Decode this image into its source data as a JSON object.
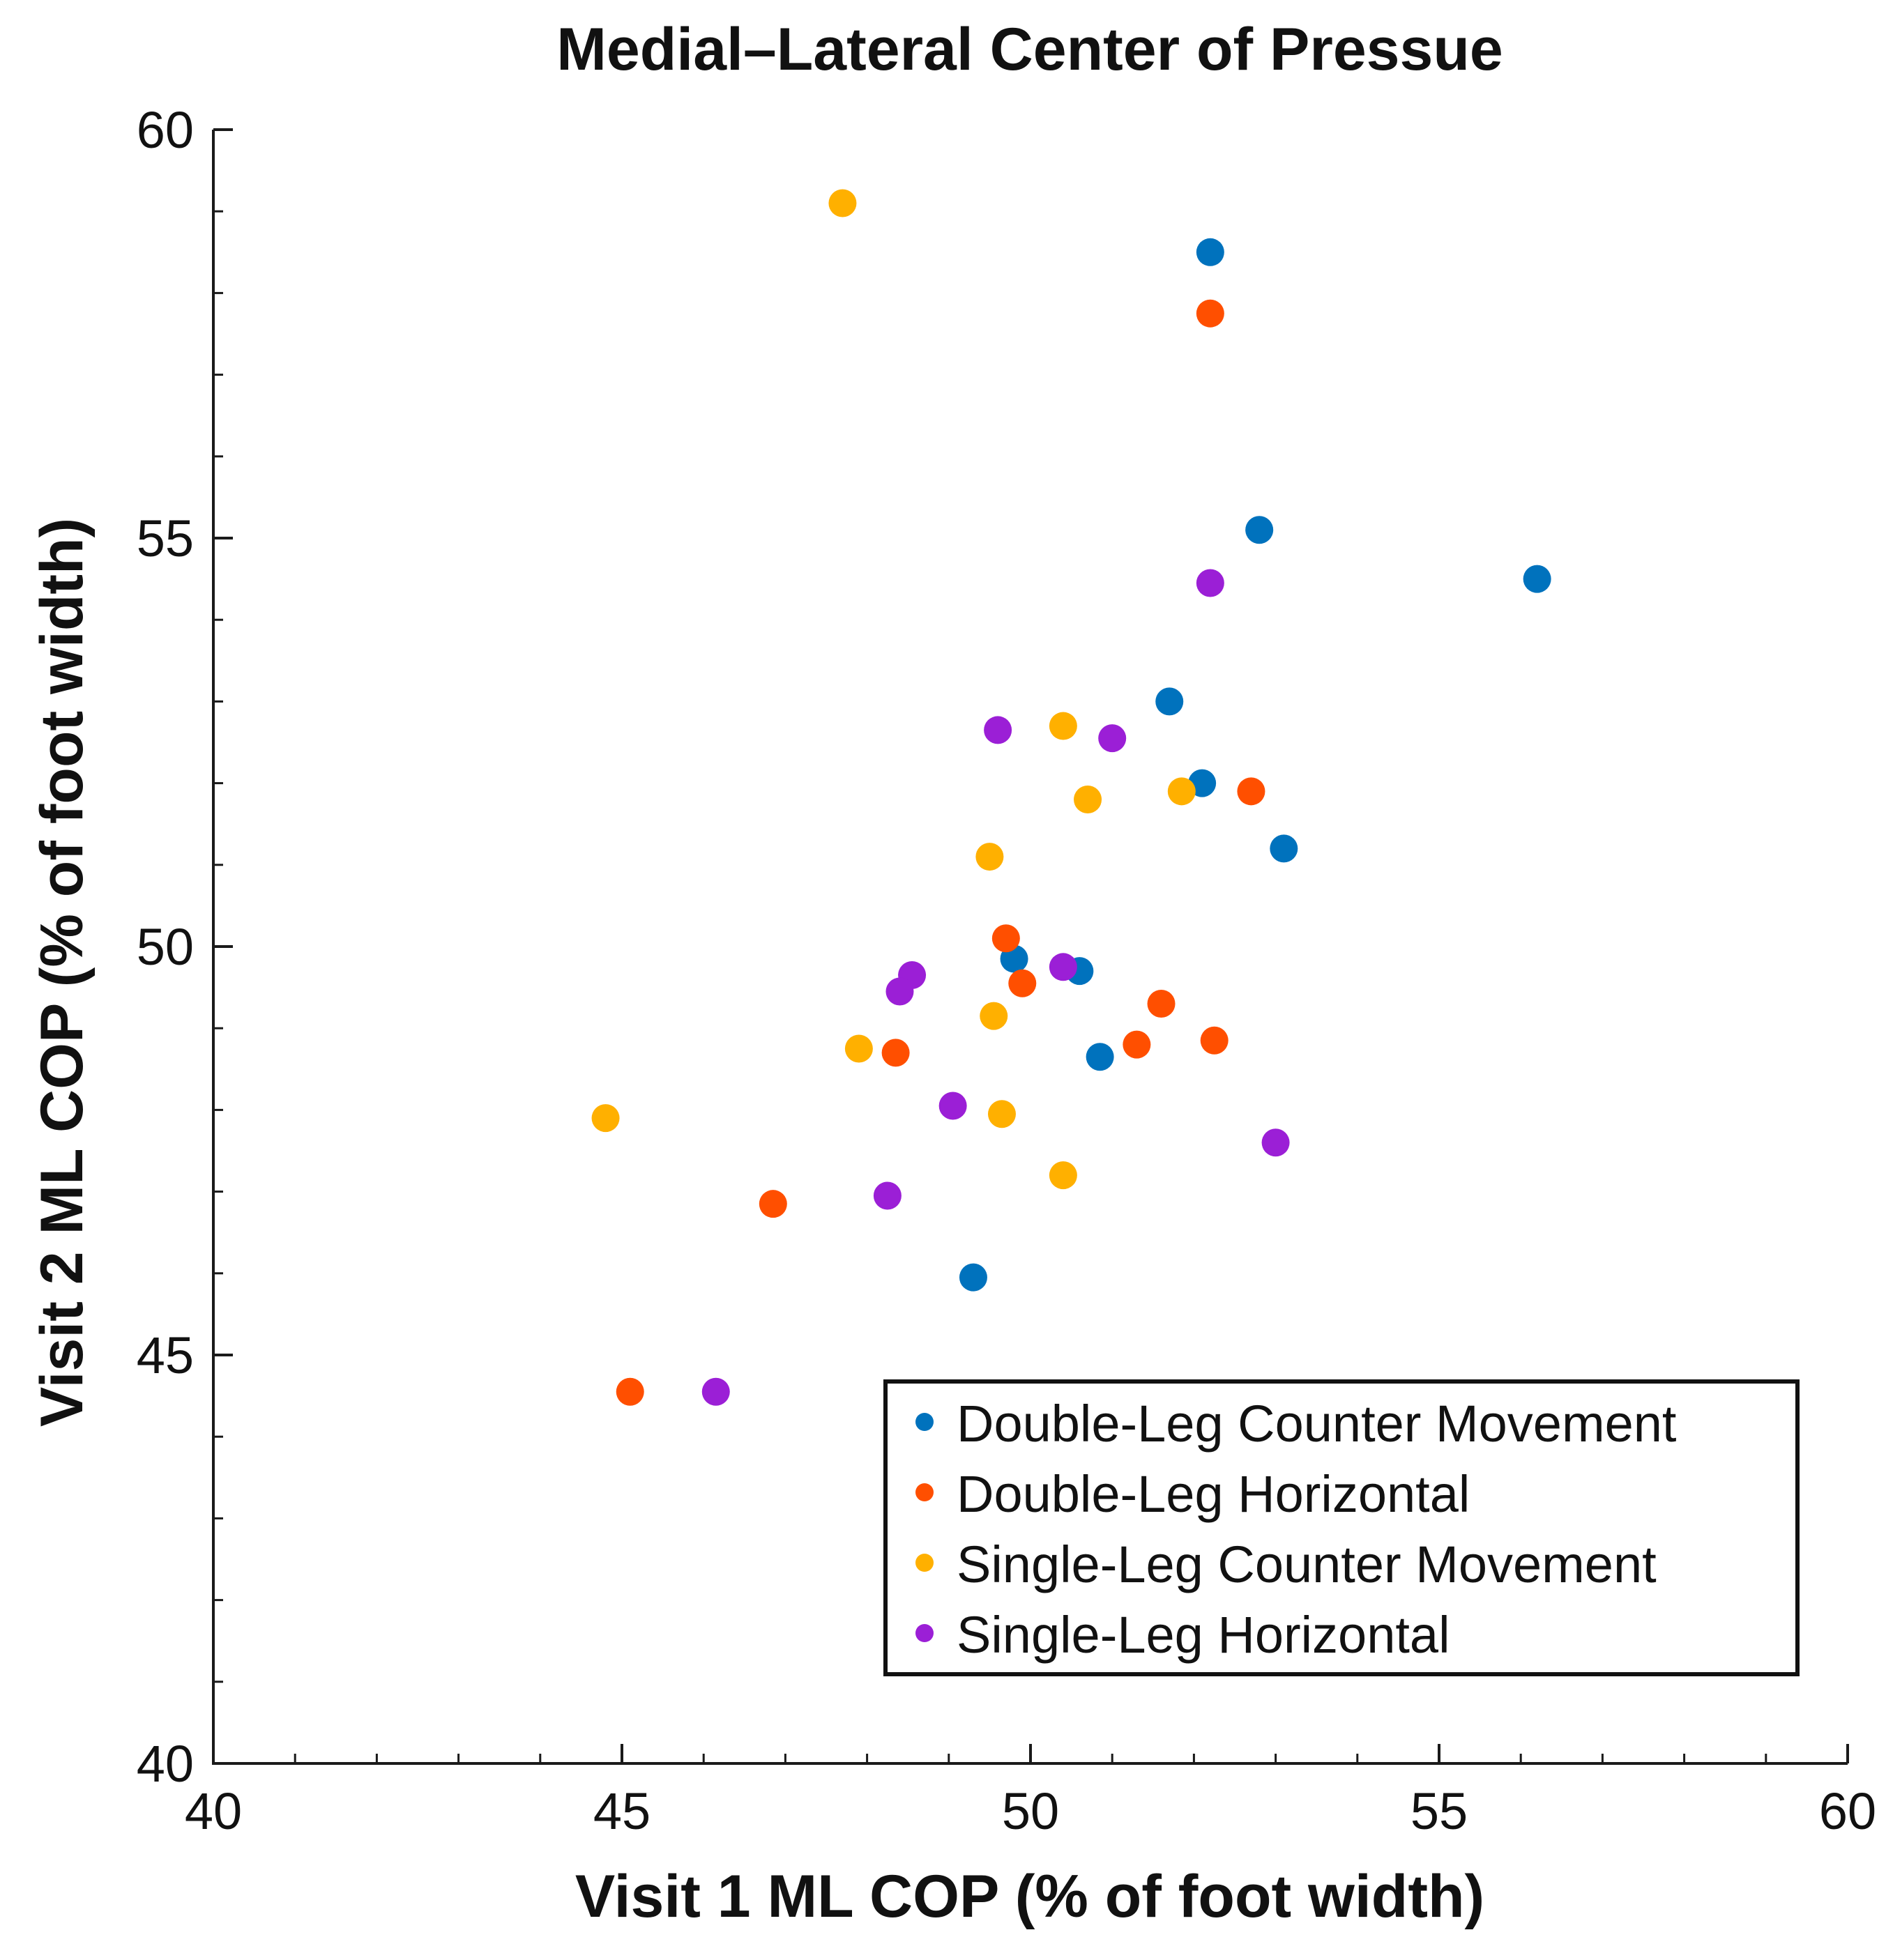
{
  "colors": {
    "axis": "#1a1a1a",
    "legend_border": "#111111",
    "background": "#ffffff"
  },
  "chart_data": {
    "type": "scatter",
    "title": "Medial–Lateral Center of Pressue",
    "xlabel": "Visit 1 ML COP (% of foot width)",
    "ylabel": "Visit 2 ML COP (% of foot width)",
    "xlim": [
      40,
      60
    ],
    "ylim": [
      40,
      60
    ],
    "xticks": [
      40,
      45,
      50,
      55,
      60
    ],
    "yticks": [
      40,
      45,
      50,
      55,
      60
    ],
    "xtick_labels": [
      "40",
      "45",
      "50",
      "55",
      "60"
    ],
    "ytick_labels": [
      "40",
      "45",
      "50",
      "55",
      "60"
    ],
    "minor_tick_step": 1,
    "grid": false,
    "legend_position": "bottom-right",
    "series": [
      {
        "name": "Double-Leg Counter Movement",
        "color": "#0072BD",
        "points": [
          [
            52.2,
            58.5
          ],
          [
            52.8,
            55.1
          ],
          [
            56.2,
            54.5
          ],
          [
            51.7,
            53.0
          ],
          [
            52.1,
            52.0
          ],
          [
            53.1,
            51.2
          ],
          [
            49.8,
            49.85
          ],
          [
            50.6,
            49.7
          ],
          [
            50.85,
            48.65
          ],
          [
            49.3,
            45.95
          ]
        ]
      },
      {
        "name": "Double-Leg Horizontal",
        "color": "#FF4F00",
        "points": [
          [
            52.2,
            57.75
          ],
          [
            52.7,
            51.9
          ],
          [
            49.7,
            50.1
          ],
          [
            49.9,
            49.55
          ],
          [
            51.6,
            49.3
          ],
          [
            52.25,
            48.85
          ],
          [
            51.3,
            48.8
          ],
          [
            48.35,
            48.7
          ],
          [
            46.85,
            46.85
          ],
          [
            45.1,
            44.55
          ]
        ]
      },
      {
        "name": "Single-Leg Counter Movement",
        "color": "#FFB000",
        "points": [
          [
            47.7,
            59.1
          ],
          [
            50.4,
            52.7
          ],
          [
            50.7,
            51.8
          ],
          [
            51.85,
            51.9
          ],
          [
            49.5,
            51.1
          ],
          [
            49.55,
            49.15
          ],
          [
            47.9,
            48.75
          ],
          [
            49.65,
            47.95
          ],
          [
            44.8,
            47.9
          ],
          [
            50.4,
            47.2
          ]
        ]
      },
      {
        "name": "Single-Leg Horizontal",
        "color": "#9B1FD6",
        "points": [
          [
            52.2,
            54.45
          ],
          [
            49.6,
            52.65
          ],
          [
            51.0,
            52.55
          ],
          [
            50.4,
            49.75
          ],
          [
            48.55,
            49.65
          ],
          [
            48.4,
            49.45
          ],
          [
            49.05,
            48.05
          ],
          [
            53.0,
            47.6
          ],
          [
            48.25,
            46.95
          ],
          [
            46.15,
            44.55
          ]
        ]
      }
    ]
  }
}
